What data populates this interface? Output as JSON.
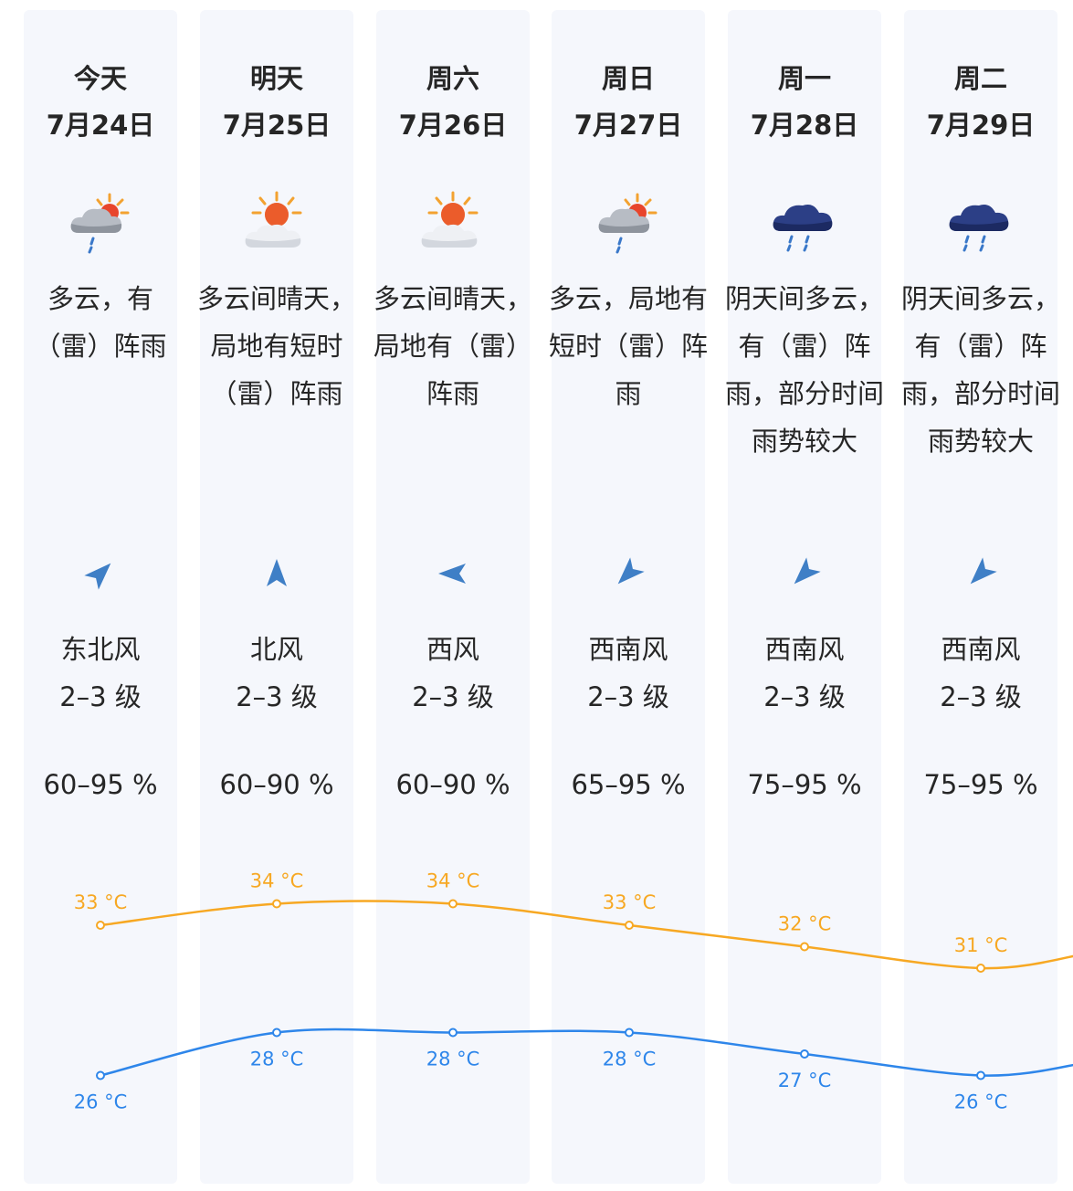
{
  "days": [
    {
      "name": "今天",
      "date": "7月24日",
      "icon": "partly-cloudy-rain-icon",
      "description": "多云，有（雷）阵雨",
      "wind_name": "东北风",
      "wind_level": "2–3 级",
      "wind_arrow_angle": 225,
      "humidity": "60–95 %"
    },
    {
      "name": "明天",
      "date": "7月25日",
      "icon": "sun-behind-cloud-icon",
      "description": "多云间晴天，局地有短时（雷）阵雨",
      "wind_name": "北风",
      "wind_level": "2–3 级",
      "wind_arrow_angle": 180,
      "humidity": "60–90 %"
    },
    {
      "name": "周六",
      "date": "7月26日",
      "icon": "sun-behind-cloud-icon",
      "description": "多云间晴天，局地有（雷）阵雨",
      "wind_name": "西风",
      "wind_level": "2–3 级",
      "wind_arrow_angle": 90,
      "humidity": "60–90 %"
    },
    {
      "name": "周日",
      "date": "7月27日",
      "icon": "partly-cloudy-rain-icon",
      "description": "多云，局地有短时（雷）阵雨",
      "wind_name": "西南风",
      "wind_level": "2–3 级",
      "wind_arrow_angle": 45,
      "humidity": "65–95 %"
    },
    {
      "name": "周一",
      "date": "7月28日",
      "icon": "heavy-rain-cloud-icon",
      "description": "阴天间多云，有（雷）阵雨，部分时间雨势较大",
      "wind_name": "西南风",
      "wind_level": "2–3 级",
      "wind_arrow_angle": 45,
      "humidity": "75–95 %"
    },
    {
      "name": "周二",
      "date": "7月29日",
      "icon": "heavy-rain-cloud-icon",
      "description": "阴天间多云，有（雷）阵雨，部分时间雨势较大",
      "wind_name": "西南风",
      "wind_level": "2–3 级",
      "wind_arrow_angle": 45,
      "humidity": "75–95 %"
    }
  ],
  "colors": {
    "column_bg": "#f5f7fc",
    "high_line": "#f7a823",
    "low_line": "#2e86ea",
    "wind_arrow": "#3f7fc6"
  },
  "chart_data": {
    "type": "line",
    "categories": [
      "7月24日",
      "7月25日",
      "7月26日",
      "7月27日",
      "7月28日",
      "7月29日"
    ],
    "unit": "°C",
    "series": [
      {
        "values": [
          33,
          34,
          34,
          33,
          32,
          31
        ]
      },
      {
        "values": [
          26,
          28,
          28,
          28,
          27,
          26
        ]
      }
    ],
    "label_texts": [
      [
        "33 °C",
        "34 °C",
        "34 °C",
        "33 °C",
        "32 °C",
        "31 °C"
      ],
      [
        "26 °C",
        "28 °C",
        "28 °C",
        "28 °C",
        "27 °C",
        "26 °C"
      ]
    ],
    "grid": false
  }
}
